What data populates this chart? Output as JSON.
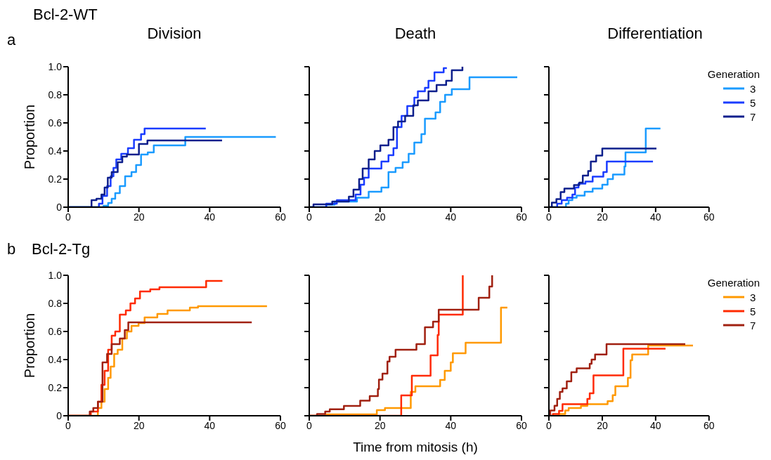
{
  "chart_data": [
    {
      "type": "step",
      "title": "Division",
      "ylabel": "Proportion",
      "annotations": [
        "a",
        "Bcl-2-WT"
      ],
      "xlim": [
        0,
        60
      ],
      "xticks": [
        0,
        20,
        40,
        60
      ],
      "ylim": [
        0,
        1
      ],
      "yticks": [
        0,
        0.2,
        0.4,
        0.6,
        0.8,
        {
          "value": 1,
          "label": "1.0"
        }
      ],
      "series": [
        {
          "color": "#1a9bff",
          "x": [
            0,
            10.0,
            11.3,
            12.3,
            13.3,
            14.6,
            16.1,
            17.9,
            19.2,
            20.6,
            22.5,
            24.2,
            33.1,
            58.7
          ],
          "values": [
            0,
            0.01,
            0.03,
            0.06,
            0.1,
            0.15,
            0.22,
            0.25,
            0.3,
            0.375,
            0.39,
            0.44,
            0.5,
            0.5
          ]
        },
        {
          "color": "#1a3cff",
          "x": [
            0,
            8.7,
            9.7,
            11.0,
            12.0,
            12.8,
            13.6,
            15.0,
            16.9,
            18.6,
            20.6,
            21.6,
            38.9
          ],
          "values": [
            0,
            0.025,
            0.08,
            0.15,
            0.22,
            0.28,
            0.34,
            0.38,
            0.42,
            0.48,
            0.52,
            0.56,
            0.56
          ]
        },
        {
          "color": "#0d1f8c",
          "x": [
            0,
            6.6,
            8.0,
            9.4,
            10.3,
            11.2,
            12.3,
            14.0,
            15.3,
            16.6,
            20.0,
            22.4,
            43.5
          ],
          "values": [
            0,
            0.05,
            0.06,
            0.09,
            0.14,
            0.21,
            0.25,
            0.32,
            0.36,
            0.375,
            0.45,
            0.475,
            0.475
          ]
        }
      ]
    },
    {
      "type": "step",
      "title": "Death",
      "tick_labels": "x",
      "xlim": [
        0,
        60
      ],
      "xticks": [
        0,
        20,
        40,
        60
      ],
      "ylim": [
        0,
        1
      ],
      "yticks": [
        0,
        0.2,
        0.4,
        0.6,
        0.8,
        1.0
      ],
      "series": [
        {
          "color": "#1a9bff",
          "x": [
            0,
            4.8,
            7.2,
            13.5,
            16.8,
            20.4,
            22.4,
            24.4,
            26.4,
            28.1,
            29.7,
            31.7,
            32.7,
            35.7,
            37.0,
            38.4,
            40.3,
            45.3,
            58.8
          ],
          "values": [
            0,
            0.017,
            0.04,
            0.067,
            0.11,
            0.14,
            0.25,
            0.28,
            0.32,
            0.38,
            0.46,
            0.52,
            0.63,
            0.675,
            0.75,
            0.8,
            0.84,
            0.925,
            0.925
          ]
        },
        {
          "color": "#1a3cff",
          "x": [
            0,
            4.8,
            7.8,
            13.1,
            14.5,
            15.5,
            16.8,
            20.4,
            22.4,
            23.8,
            24.8,
            26.1,
            27.7,
            29.7,
            30.7,
            32.7,
            33.7,
            35.4,
            38.0,
            38.9
          ],
          "values": [
            0,
            0.025,
            0.05,
            0.09,
            0.16,
            0.21,
            0.275,
            0.325,
            0.37,
            0.42,
            0.57,
            0.65,
            0.72,
            0.78,
            0.825,
            0.85,
            0.9,
            0.96,
            0.99,
            0.99
          ]
        },
        {
          "color": "#0d1f8c",
          "x": [
            0,
            1.2,
            6.5,
            11.2,
            12.5,
            14.1,
            15.1,
            16.8,
            18.5,
            20.1,
            22.4,
            23.8,
            25.1,
            27.1,
            29.4,
            30.7,
            33.7,
            36.0,
            38.7,
            40.3,
            43.3
          ],
          "values": [
            0,
            0.02,
            0.04,
            0.075,
            0.125,
            0.2,
            0.275,
            0.34,
            0.4,
            0.44,
            0.48,
            0.57,
            0.61,
            0.65,
            0.725,
            0.76,
            0.825,
            0.87,
            0.9,
            0.975,
            1.0
          ]
        }
      ]
    },
    {
      "type": "step",
      "title": "Differentiation",
      "tick_labels": "x",
      "legend": "top right",
      "legend_title": "Generation",
      "xlim": [
        0,
        60
      ],
      "xticks": [
        0,
        20,
        40,
        60
      ],
      "ylim": [
        0,
        1
      ],
      "yticks": [
        0,
        0.2,
        0.4,
        0.6,
        0.8,
        1.0
      ],
      "series": [
        {
          "name": "3",
          "color": "#1a9bff",
          "x": [
            0,
            6.4,
            7.4,
            8.8,
            10.4,
            13.4,
            16.4,
            20.0,
            22.0,
            24.0,
            28.3,
            28.7,
            36.3,
            41.8
          ],
          "values": [
            0,
            0.025,
            0.05,
            0.067,
            0.083,
            0.11,
            0.133,
            0.16,
            0.2,
            0.233,
            0.29,
            0.39,
            0.56,
            0.56
          ]
        },
        {
          "name": "5",
          "color": "#1a3cff",
          "x": [
            0,
            3.1,
            4.8,
            6.8,
            8.8,
            9.8,
            11.1,
            13.7,
            16.4,
            20.4,
            21.7,
            39.0
          ],
          "values": [
            0,
            0.025,
            0.05,
            0.067,
            0.09,
            0.14,
            0.167,
            0.183,
            0.217,
            0.25,
            0.325,
            0.325
          ]
        },
        {
          "name": "7",
          "color": "#0d1f8c",
          "x": [
            0,
            1.1,
            2.8,
            4.4,
            5.8,
            9.4,
            11.4,
            12.7,
            14.7,
            15.7,
            17.7,
            20.0,
            40.3
          ],
          "values": [
            0,
            0.033,
            0.058,
            0.108,
            0.133,
            0.158,
            0.175,
            0.225,
            0.258,
            0.325,
            0.367,
            0.417,
            0.417
          ]
        }
      ]
    },
    {
      "type": "step",
      "ylabel": "Proportion",
      "annotations": [
        "b",
        "Bcl-2-Tg"
      ],
      "xlim": [
        0,
        60
      ],
      "xticks": [
        0,
        20,
        40,
        60
      ],
      "ylim": [
        0,
        1
      ],
      "yticks": [
        0,
        0.2,
        0.4,
        0.6,
        0.8,
        {
          "value": 1,
          "label": "1.0"
        }
      ],
      "series": [
        {
          "color": "#ff9900",
          "x": [
            0,
            8.4,
            9.4,
            10.3,
            11.3,
            12.0,
            13.0,
            14.0,
            15.3,
            16.6,
            17.9,
            19.9,
            21.6,
            25.2,
            28.1,
            34.4,
            36.7,
            56.2
          ],
          "values": [
            0,
            0.055,
            0.1,
            0.19,
            0.27,
            0.35,
            0.44,
            0.47,
            0.55,
            0.6,
            0.64,
            0.66,
            0.7,
            0.725,
            0.75,
            0.77,
            0.78,
            0.78
          ]
        },
        {
          "color": "#ff2a00",
          "x": [
            0,
            6.4,
            8.4,
            9.4,
            10.3,
            11.3,
            12.3,
            13.3,
            14.6,
            16.3,
            17.6,
            18.9,
            20.3,
            23.2,
            25.8,
            39.0,
            43.6
          ],
          "values": [
            0,
            0.03,
            0.1,
            0.22,
            0.32,
            0.47,
            0.57,
            0.6,
            0.72,
            0.75,
            0.8,
            0.835,
            0.885,
            0.9,
            0.915,
            0.96,
            0.96
          ]
        },
        {
          "color": "#a02010",
          "x": [
            0,
            6.1,
            7.1,
            8.4,
            9.7,
            11.0,
            12.3,
            14.6,
            16.0,
            17.0,
            51.9
          ],
          "values": [
            0,
            0.03,
            0.055,
            0.1,
            0.38,
            0.44,
            0.51,
            0.55,
            0.61,
            0.665,
            0.665
          ]
        }
      ]
    },
    {
      "type": "step",
      "xlabel": "Time from mitosis (h)",
      "tick_labels": "x",
      "xlim": [
        0,
        60
      ],
      "xticks": [
        0,
        20,
        40,
        60
      ],
      "ylim": [
        0,
        1
      ],
      "yticks": [
        0,
        0.2,
        0.4,
        0.6,
        0.8,
        1.0
      ],
      "series": [
        {
          "color": "#ff9900",
          "x": [
            0,
            4.5,
            19.1,
            21.4,
            28.7,
            30.0,
            37.0,
            38.3,
            40.0,
            40.6,
            44.2,
            54.2,
            56.0
          ],
          "values": [
            0,
            0.01,
            0.04,
            0.055,
            0.17,
            0.21,
            0.255,
            0.32,
            0.38,
            0.445,
            0.52,
            0.77,
            0.77
          ]
        },
        {
          "color": "#ff2a00",
          "x": [
            0,
            26.0,
            29.0,
            34.3,
            36.3,
            36.6,
            43.4
          ],
          "values": [
            0,
            0.145,
            0.285,
            0.43,
            0.575,
            0.72,
            1.0
          ]
        },
        {
          "color": "#a02010",
          "x": [
            0,
            2.2,
            4.5,
            5.8,
            9.8,
            14.4,
            17.1,
            19.4,
            19.7,
            20.7,
            22.1,
            22.7,
            24.4,
            30.3,
            32.7,
            35.0,
            36.6,
            47.9,
            50.9,
            51.7
          ],
          "values": [
            0,
            0.013,
            0.03,
            0.046,
            0.07,
            0.108,
            0.14,
            0.19,
            0.257,
            0.3,
            0.386,
            0.42,
            0.47,
            0.51,
            0.63,
            0.67,
            0.755,
            0.84,
            0.92,
            1.0
          ]
        }
      ]
    },
    {
      "type": "step",
      "tick_labels": "x",
      "legend": "top right",
      "legend_title": "Generation",
      "xlim": [
        0,
        60
      ],
      "xticks": [
        0,
        20,
        40,
        60
      ],
      "ylim": [
        0,
        1
      ],
      "yticks": [
        0,
        0.2,
        0.4,
        0.6,
        0.8,
        1.0
      ],
      "series": [
        {
          "name": "3",
          "color": "#ff9900",
          "x": [
            0,
            3.8,
            6.1,
            7.4,
            12.0,
            14.4,
            22.0,
            23.9,
            24.9,
            29.6,
            30.6,
            31.2,
            37.2,
            54.0
          ],
          "values": [
            0,
            0.013,
            0.038,
            0.055,
            0.07,
            0.083,
            0.104,
            0.146,
            0.21,
            0.27,
            0.395,
            0.436,
            0.5,
            0.5
          ]
        },
        {
          "name": "5",
          "color": "#ff2a00",
          "x": [
            0,
            1.5,
            3.8,
            5.1,
            14.4,
            15.3,
            16.7,
            27.9,
            43.7
          ],
          "values": [
            0,
            0.013,
            0.035,
            0.083,
            0.12,
            0.16,
            0.287,
            0.478,
            0.478
          ]
        },
        {
          "name": "7",
          "color": "#a02010",
          "x": [
            0,
            0.5,
            2.1,
            3.1,
            4.1,
            5.1,
            6.7,
            8.4,
            10.4,
            15.3,
            16.0,
            17.3,
            21.6,
            51.1
          ],
          "values": [
            0,
            0.038,
            0.071,
            0.12,
            0.17,
            0.195,
            0.245,
            0.31,
            0.337,
            0.37,
            0.4,
            0.436,
            0.51,
            0.51
          ]
        }
      ]
    }
  ]
}
